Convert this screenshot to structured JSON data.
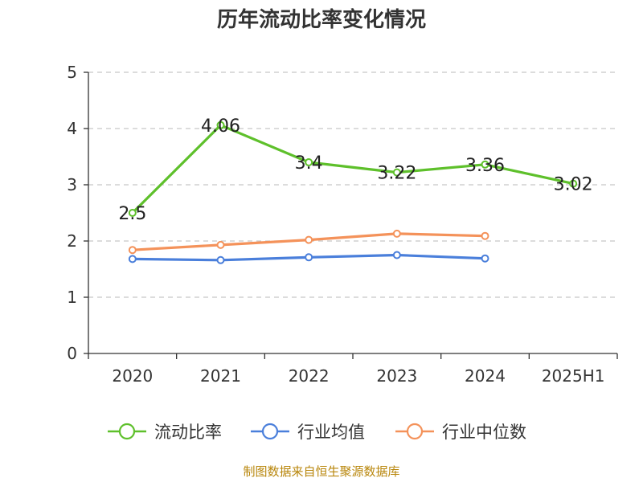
{
  "chart_data": {
    "type": "line",
    "title": "历年流动比率变化情况",
    "categories": [
      "2020",
      "2021",
      "2022",
      "2023",
      "2024",
      "2025H1"
    ],
    "ylim": [
      0,
      5
    ],
    "yticks": [
      "0",
      "1",
      "2",
      "3",
      "4",
      "5"
    ],
    "grid": true,
    "legend_position": "bottom",
    "series": [
      {
        "name": "流动比率",
        "color": "#5ec02b",
        "values": [
          2.5,
          4.06,
          3.4,
          3.22,
          3.36,
          3.02
        ],
        "labels": [
          "2.5",
          "4.06",
          "3.4",
          "3.22",
          "3.36",
          "3.02"
        ]
      },
      {
        "name": "行业均值",
        "color": "#4a7fdb",
        "values": [
          1.68,
          1.66,
          1.71,
          1.75,
          1.69,
          null
        ]
      },
      {
        "name": "行业中位数",
        "color": "#f4925a",
        "values": [
          1.84,
          1.93,
          2.02,
          2.13,
          2.09,
          null
        ]
      }
    ]
  },
  "source": "制图数据来自恒生聚源数据库"
}
